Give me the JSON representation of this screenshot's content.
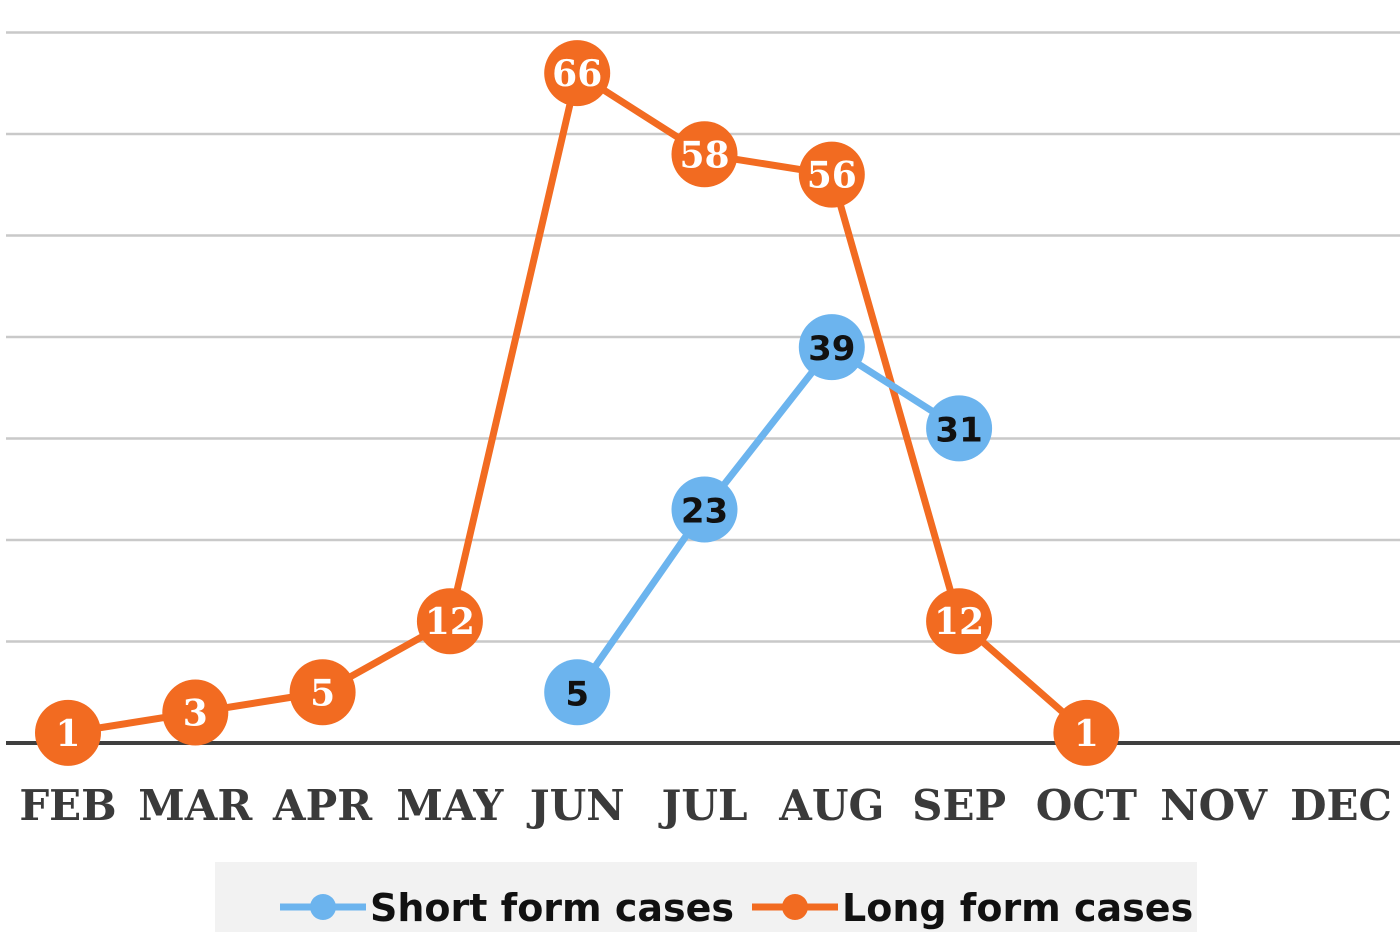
{
  "chart_data": {
    "type": "line",
    "categories": [
      "FEB",
      "MAR",
      "APR",
      "MAY",
      "JUN",
      "JUL",
      "AUG",
      "SEP",
      "OCT",
      "NOV",
      "DEC"
    ],
    "series": [
      {
        "name": "Short form cases",
        "color": "#6CB4EE",
        "values": [
          null,
          null,
          null,
          null,
          5,
          23,
          39,
          31,
          null,
          null,
          null
        ]
      },
      {
        "name": "Long form cases",
        "color": "#F26B21",
        "values": [
          1,
          3,
          5,
          12,
          66,
          58,
          56,
          12,
          1,
          null,
          null
        ]
      }
    ],
    "ylim": [
      0,
      70
    ],
    "grid": true,
    "legend_position": "bottom"
  }
}
